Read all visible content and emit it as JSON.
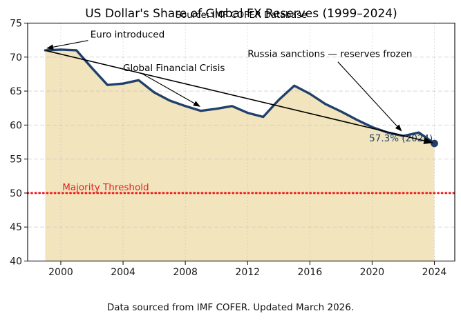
{
  "figure": {
    "title": "US Dollar's Share of Global FX Reserves (1999–2024)",
    "overlay_subtitle": "Source: IMF COFER Database",
    "caption": "Data sourced from IMF COFER. Updated March 2026."
  },
  "colors": {
    "line": "#20406c",
    "area_fill": "#f2e4bd",
    "grid": "#c2c2c2",
    "threshold_line": "#f11616",
    "threshold_label": "#e02222",
    "annotation": "#000000",
    "endpoint_label": "#20406c",
    "axis": "#1c1c1c",
    "tick_label": "#1a1a1a"
  },
  "chart_data": {
    "type": "line",
    "title": "US Dollar's Share of Global FX Reserves (1999–2024)",
    "xlabel": "",
    "ylabel": "",
    "x": [
      1999,
      2000,
      2001,
      2002,
      2003,
      2004,
      2005,
      2006,
      2007,
      2008,
      2009,
      2010,
      2011,
      2012,
      2013,
      2014,
      2015,
      2016,
      2017,
      2018,
      2019,
      2020,
      2021,
      2022,
      2023,
      2024
    ],
    "series": [
      {
        "name": "usd_share_pct",
        "values": [
          71.0,
          71.1,
          71.0,
          68.4,
          65.9,
          66.1,
          66.6,
          64.8,
          63.6,
          62.8,
          62.1,
          62.4,
          62.8,
          61.8,
          61.2,
          63.7,
          65.8,
          64.6,
          63.1,
          62.0,
          60.8,
          59.7,
          58.9,
          58.4,
          58.9,
          57.3
        ]
      }
    ],
    "xlim": [
      1997.87,
      2025.31
    ],
    "ylim": [
      40,
      75
    ],
    "xticks": [
      2000,
      2004,
      2008,
      2012,
      2016,
      2020,
      2024
    ],
    "yticks": [
      40,
      45,
      50,
      55,
      60,
      65,
      70,
      75
    ],
    "grid": true,
    "legend_position": "none",
    "area_fill_to": 40,
    "threshold_line": {
      "value": 50,
      "label": "Majority Threshold",
      "label_at": [
        2000.1,
        50.42
      ],
      "style": "dotted"
    },
    "trend_arrow": {
      "from": [
        1999.05,
        70.95
      ],
      "to": [
        2023.9,
        57.4
      ]
    },
    "annotations": [
      {
        "id": "euro-introduced",
        "text": "Euro introduced",
        "text_at": [
          2001.9,
          72.85
        ],
        "arrow_from": [
          2001.75,
          72.45
        ],
        "arrow_to": [
          1999.12,
          71.3
        ]
      },
      {
        "id": "global-financial-crisis",
        "text": "Global Financial Crisis",
        "text_at": [
          2004.0,
          67.95
        ],
        "arrow_from": [
          2005.2,
          67.6
        ],
        "arrow_to": [
          2008.93,
          62.75
        ]
      },
      {
        "id": "russia-sanctions",
        "text": "Russia sanctions — reserves frozen",
        "text_at": [
          2012.0,
          70.05
        ],
        "arrow_from": [
          2017.8,
          69.3
        ],
        "arrow_to": [
          2021.88,
          59.15
        ]
      }
    ],
    "endpoint": {
      "x": 2024,
      "y": 57.3,
      "label": "57.3% (2024)",
      "label_at": [
        2023.9,
        57.62
      ]
    }
  }
}
